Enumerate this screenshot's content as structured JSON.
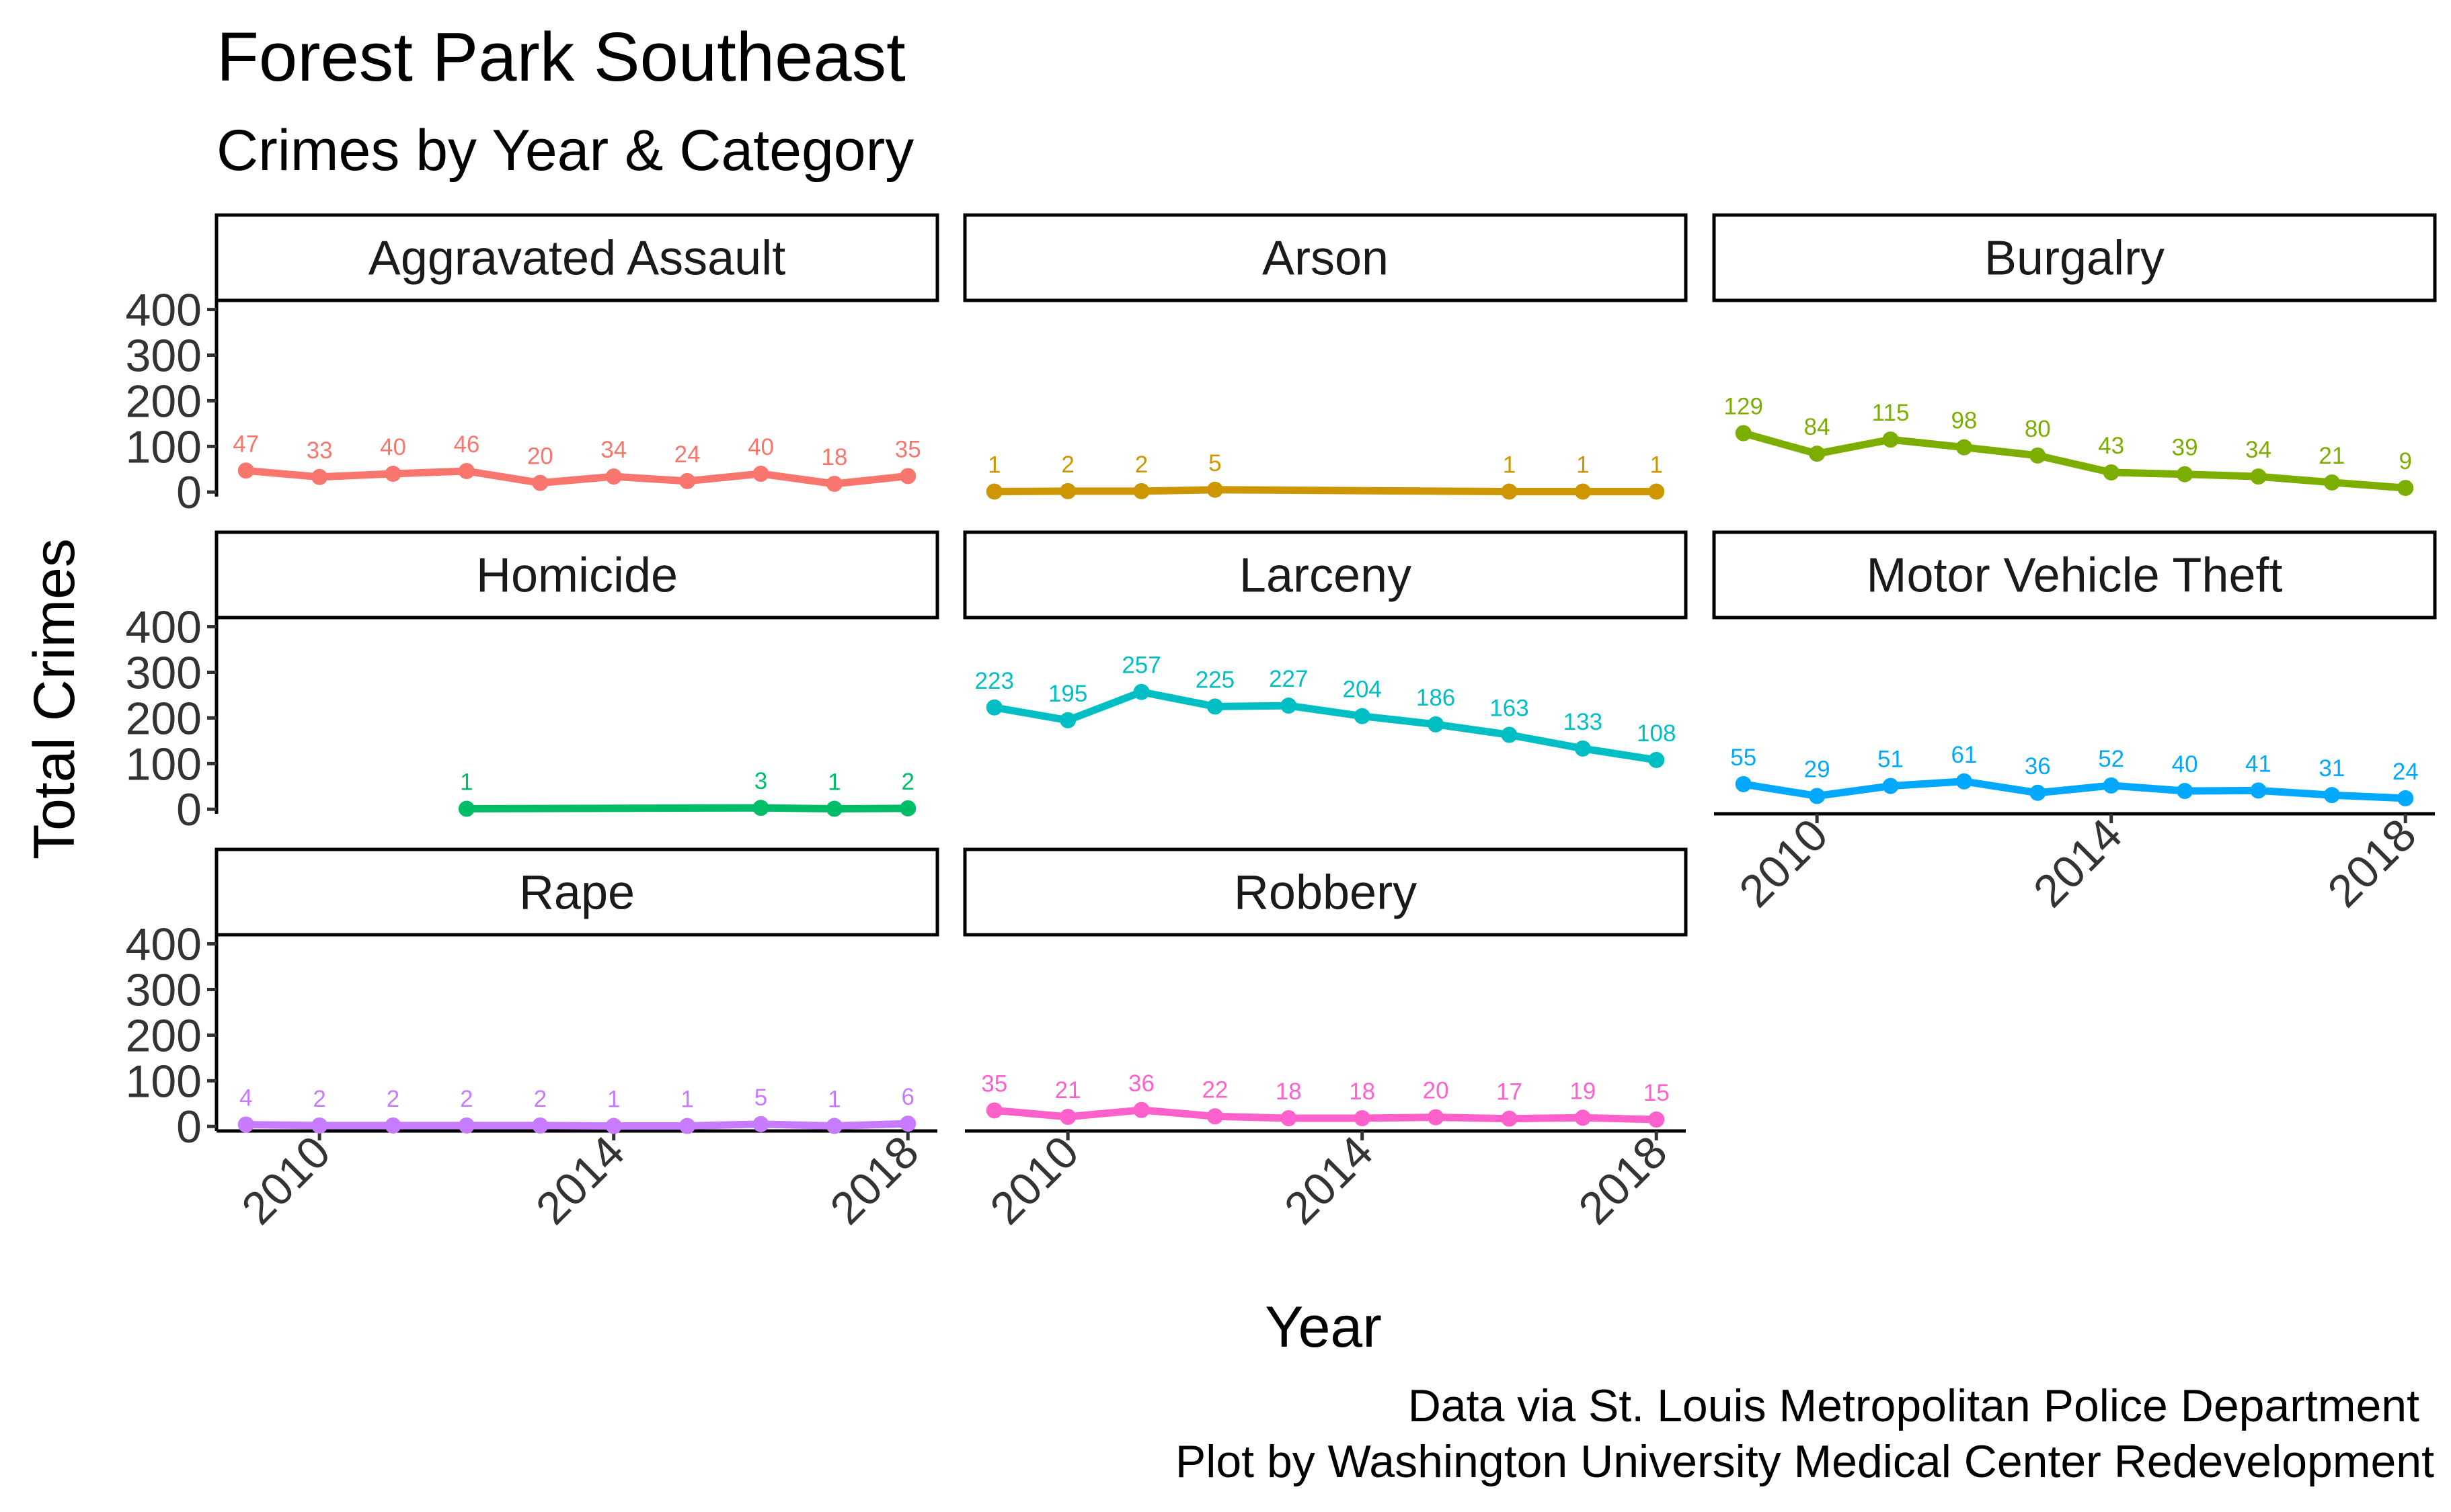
{
  "chart_data": {
    "type": "line",
    "title": "Forest Park Southeast",
    "subtitle": "Crimes by Year & Category",
    "xlabel": "Year",
    "ylabel": "Total Crimes",
    "caption_lines": [
      "Data via St. Louis Metropolitan Police Department",
      "Plot by Washington University Medical Center Redevelopment"
    ],
    "xlim": [
      2008.6,
      2018.4
    ],
    "ylim": [
      -10,
      420
    ],
    "x_ticks": [
      2010,
      2014,
      2018
    ],
    "y_ticks": [
      0,
      100,
      200,
      300,
      400
    ],
    "grid": false,
    "legend": "none",
    "panels": [
      {
        "name": "Aggravated Assault",
        "color": "#F8766D",
        "x": [
          2009,
          2010,
          2011,
          2012,
          2013,
          2014,
          2015,
          2016,
          2017,
          2018
        ],
        "values": [
          47,
          33,
          40,
          46,
          20,
          34,
          24,
          40,
          18,
          35
        ]
      },
      {
        "name": "Arson",
        "color": "#CD9600",
        "x": [
          2009,
          2010,
          2011,
          2012,
          2016,
          2017,
          2018
        ],
        "values": [
          1,
          2,
          2,
          5,
          1,
          1,
          1
        ]
      },
      {
        "name": "Burgalry",
        "color": "#7CAE00",
        "x": [
          2009,
          2010,
          2011,
          2012,
          2013,
          2014,
          2015,
          2016,
          2017,
          2018
        ],
        "values": [
          129,
          84,
          115,
          98,
          80,
          43,
          39,
          34,
          21,
          9
        ]
      },
      {
        "name": "Homicide",
        "color": "#00BE67",
        "x": [
          2012,
          2016,
          2017,
          2018
        ],
        "values": [
          1,
          3,
          1,
          2
        ]
      },
      {
        "name": "Larceny",
        "color": "#00BFC4",
        "x": [
          2009,
          2010,
          2011,
          2012,
          2013,
          2014,
          2015,
          2016,
          2017,
          2018
        ],
        "values": [
          223,
          195,
          257,
          225,
          227,
          204,
          186,
          163,
          133,
          108
        ]
      },
      {
        "name": "Motor Vehicle Theft",
        "color": "#00A9FF",
        "x": [
          2009,
          2010,
          2011,
          2012,
          2013,
          2014,
          2015,
          2016,
          2017,
          2018
        ],
        "values": [
          55,
          29,
          51,
          61,
          36,
          52,
          40,
          41,
          31,
          24
        ]
      },
      {
        "name": "Rape",
        "color": "#C77CFF",
        "x": [
          2009,
          2010,
          2011,
          2012,
          2013,
          2014,
          2015,
          2016,
          2017,
          2018
        ],
        "values": [
          4,
          2,
          2,
          2,
          2,
          1,
          1,
          5,
          1,
          6
        ]
      },
      {
        "name": "Robbery",
        "color": "#FF61CC",
        "x": [
          2009,
          2010,
          2011,
          2012,
          2013,
          2014,
          2015,
          2016,
          2017,
          2018
        ],
        "values": [
          35,
          21,
          36,
          22,
          18,
          18,
          20,
          17,
          19,
          15
        ]
      }
    ]
  }
}
